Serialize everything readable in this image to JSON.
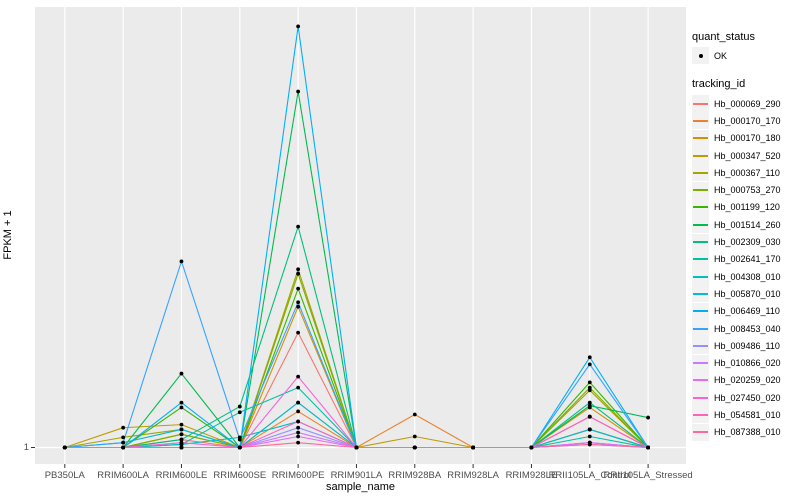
{
  "axes": {
    "x_title": "sample_name",
    "y_title": "FPKM + 1",
    "y_tick": "1"
  },
  "legend": {
    "quant_status": {
      "title": "quant_status",
      "items": [
        {
          "label": "OK",
          "marker": "point"
        }
      ]
    },
    "tracking_id": {
      "title": "tracking_id"
    }
  },
  "chart_data": {
    "type": "line",
    "title": "",
    "xlabel": "sample_name",
    "ylabel": "FPKM + 1",
    "legend_position": "right",
    "grid": true,
    "panel_background": "#EBEBEB",
    "grid_color": "#FFFFFF",
    "point_color": "#000000",
    "axis_text_color": "#4D4D4D",
    "quant_status": "OK",
    "x_categories": [
      "PB350LA",
      "RRIM600LA",
      "RRIM600LE",
      "RRIM600SE",
      "RRIM600PE",
      "RRIM901LA",
      "RRIM928BA",
      "RRIM928LA",
      "RRIM928LE",
      "RRII105LA_Control",
      "RRII105LA_Stressed"
    ],
    "y_axis": {
      "ticks": [
        "1"
      ],
      "note": "Only y=1 is labeled (baseline). Series values are estimated fractions of panel height above the y=1 baseline."
    },
    "series": [
      {
        "name": "Hb_000069_290",
        "color": "#F8766D",
        "values": [
          0,
          0,
          0.018,
          0,
          0.261,
          0,
          0,
          0,
          0,
          0.041,
          0
        ]
      },
      {
        "name": "Hb_000170_170",
        "color": "#EA8331",
        "values": [
          0,
          0,
          0,
          0,
          0.082,
          0,
          0.075,
          0,
          0,
          0.07,
          0
        ]
      },
      {
        "name": "Hb_000170_180",
        "color": "#D89000",
        "values": [
          0,
          0,
          0.03,
          0,
          0.32,
          0,
          0,
          0,
          0,
          0.091,
          0
        ]
      },
      {
        "name": "Hb_000347_520",
        "color": "#C09B00",
        "values": [
          0,
          0.045,
          0.052,
          0,
          0.102,
          0,
          0.025,
          0,
          0,
          0.041,
          0
        ]
      },
      {
        "name": "Hb_000367_110",
        "color": "#A3A500",
        "values": [
          0,
          0.023,
          0.041,
          0,
          0.405,
          0,
          0,
          0,
          0,
          0.13,
          0
        ]
      },
      {
        "name": "Hb_000753_270",
        "color": "#7CAE00",
        "values": [
          0,
          0,
          0.03,
          0,
          0.395,
          0,
          0,
          0,
          0,
          0.136,
          0
        ]
      },
      {
        "name": "Hb_001199_120",
        "color": "#39B600",
        "values": [
          0,
          0,
          0.091,
          0,
          0.361,
          0,
          0,
          0,
          0,
          0.148,
          0
        ]
      },
      {
        "name": "Hb_001514_260",
        "color": "#00BB4E",
        "values": [
          0,
          0,
          0.168,
          0,
          0.809,
          0,
          0,
          0,
          0,
          0.095,
          0.068
        ]
      },
      {
        "name": "Hb_002309_030",
        "color": "#00BF7D",
        "values": [
          0,
          0,
          0.018,
          0.093,
          0.502,
          0,
          0,
          0,
          0,
          0.102,
          0
        ]
      },
      {
        "name": "Hb_002641_170",
        "color": "#00C1A3",
        "values": [
          0,
          0,
          0.007,
          0.08,
          0.136,
          0,
          0,
          0,
          0,
          0.025,
          0
        ]
      },
      {
        "name": "Hb_004308_010",
        "color": "#00BFC4",
        "values": [
          0,
          0,
          0.007,
          0.023,
          0.059,
          0,
          0,
          0,
          0,
          0.011,
          0
        ]
      },
      {
        "name": "Hb_005870_010",
        "color": "#00BBDA",
        "values": [
          0,
          0.011,
          0.041,
          0,
          0.102,
          0,
          0,
          0,
          0,
          0.041,
          0
        ]
      },
      {
        "name": "Hb_006469_110",
        "color": "#00B0F6",
        "values": [
          0,
          0,
          0.102,
          0,
          0.957,
          0,
          0,
          0,
          0,
          0.205,
          0
        ]
      },
      {
        "name": "Hb_008453_040",
        "color": "#35A2FF",
        "values": [
          0,
          0.011,
          0.423,
          0.018,
          0.33,
          0,
          0,
          0,
          0,
          0.189,
          0
        ]
      },
      {
        "name": "Hb_009486_110",
        "color": "#9590FF",
        "values": [
          0,
          0,
          0,
          0,
          0.045,
          0,
          0,
          0,
          0,
          0.011,
          0
        ]
      },
      {
        "name": "Hb_010866_020",
        "color": "#C77CFF",
        "values": [
          0,
          0,
          0,
          0,
          0.034,
          0,
          0,
          0,
          0,
          0.007,
          0
        ]
      },
      {
        "name": "Hb_020259_020",
        "color": "#E76BF3",
        "values": [
          0,
          0,
          0,
          0,
          0.025,
          0,
          0,
          0,
          0,
          0.011,
          0
        ]
      },
      {
        "name": "Hb_027450_020",
        "color": "#FA62DB",
        "values": [
          0,
          0,
          0.011,
          0,
          0.161,
          0,
          0,
          0,
          0,
          0.07,
          0
        ]
      },
      {
        "name": "Hb_054581_010",
        "color": "#FF62BC",
        "values": [
          0,
          0,
          0,
          0,
          0.059,
          0,
          0,
          0,
          0,
          0.07,
          0
        ]
      },
      {
        "name": "Hb_087388_010",
        "color": "#FF6A98",
        "values": [
          0,
          0,
          0,
          0,
          0.011,
          0,
          0,
          0,
          0,
          0.007,
          0
        ]
      }
    ]
  }
}
